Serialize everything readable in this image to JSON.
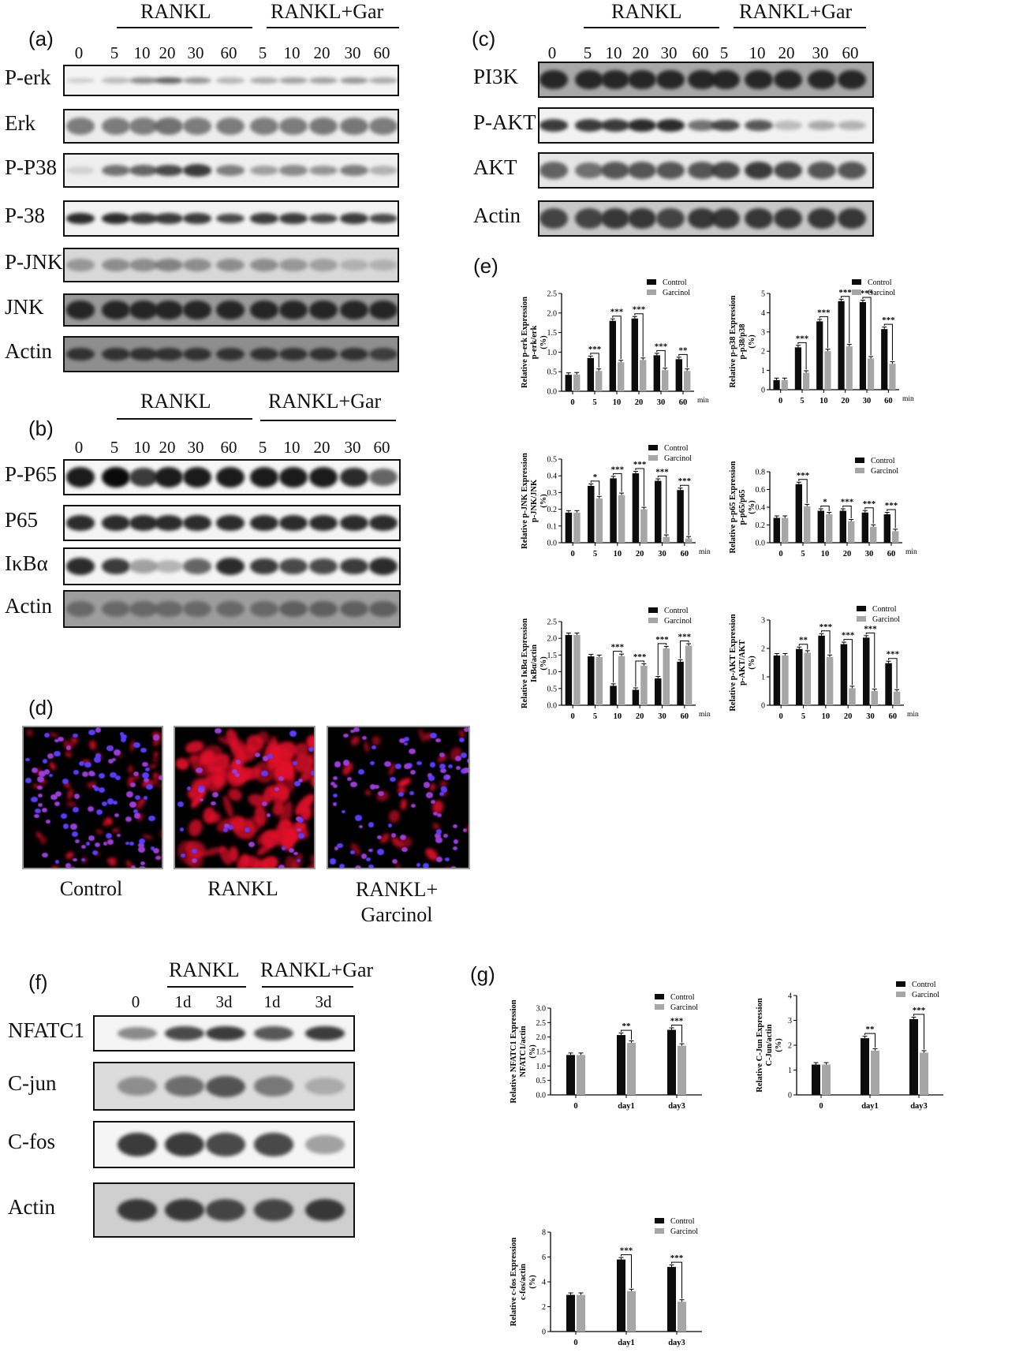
{
  "panels": {
    "a": {
      "letter": "(a)",
      "group1": "RANKL",
      "group2": "RANKL+Gar",
      "times": [
        "0",
        "5",
        "10",
        "20",
        "30",
        "60",
        "5",
        "10",
        "20",
        "30",
        "60"
      ],
      "rows": [
        "P-erk",
        "Erk",
        "P-P38",
        "P-38",
        "P-JNK",
        "JNK",
        "Actin"
      ]
    },
    "b": {
      "letter": "(b)",
      "group1": "RANKL",
      "group2": "RANKL+Gar",
      "times": [
        "0",
        "5",
        "10",
        "20",
        "30",
        "60",
        "5",
        "10",
        "20",
        "30",
        "60"
      ],
      "rows": [
        "P-P65",
        "P65",
        "IκBα",
        "Actin"
      ]
    },
    "c": {
      "letter": "(c)",
      "group1": "RANKL",
      "group2": "RANKL+Gar",
      "times": [
        "0",
        "5",
        "10",
        "20",
        "30",
        "60",
        "5",
        "10",
        "20",
        "30",
        "60"
      ],
      "rows": [
        "PI3K",
        "P-AKT",
        "AKT",
        "Actin"
      ]
    },
    "d": {
      "letter": "(d)",
      "labels": [
        "Control",
        "RANKL",
        "RANKL+\nGarcinol"
      ]
    },
    "e": {
      "letter": "(e)"
    },
    "f": {
      "letter": "(f)",
      "group1": "RANKL",
      "group2": "RANKL+Gar",
      "times": [
        "0",
        "1d",
        "3d",
        "1d",
        "3d"
      ],
      "rows": [
        "NFATC1",
        "C-jun",
        "C-fos",
        "Actin"
      ]
    },
    "g": {
      "letter": "(g)"
    }
  },
  "legend": {
    "control": "Control",
    "garcinol": "Garcinol"
  },
  "colors": {
    "control": "#0c0c0c",
    "garcinol": "#a6a6a6"
  },
  "chart_data": [
    {
      "id": "e1",
      "type": "bar",
      "categories": [
        "0",
        "5",
        "10",
        "20",
        "30",
        "60"
      ],
      "xunit": "min",
      "ylabel": [
        "Relative p-erk Expression",
        "p-erk/erk",
        "(%)"
      ],
      "ylim": [
        0,
        2.5
      ],
      "yticks": [
        "0.0",
        "0.5",
        "1.0",
        "1.5",
        "2.0",
        "2.5"
      ],
      "series": [
        {
          "name": "Control",
          "values": [
            0.42,
            0.85,
            1.8,
            1.86,
            0.92,
            0.82
          ]
        },
        {
          "name": "Garcinol",
          "values": [
            0.43,
            0.52,
            0.74,
            0.8,
            0.54,
            0.52
          ]
        }
      ],
      "sig": [
        "",
        "***",
        "***",
        "***",
        "***",
        "**"
      ]
    },
    {
      "id": "e2",
      "type": "bar",
      "categories": [
        "0",
        "5",
        "10",
        "20",
        "30",
        "60"
      ],
      "xunit": "min",
      "ylabel": [
        "Relative p-p38 Expression",
        "p-p38/p38",
        "(%)"
      ],
      "ylim": [
        0,
        5
      ],
      "yticks": [
        "0",
        "1",
        "2",
        "3",
        "4",
        "5"
      ],
      "series": [
        {
          "name": "Control",
          "values": [
            0.5,
            2.2,
            3.55,
            4.6,
            4.55,
            3.15
          ]
        },
        {
          "name": "Garcinol",
          "values": [
            0.5,
            0.88,
            2.0,
            2.25,
            1.62,
            1.35
          ]
        }
      ],
      "sig": [
        "",
        "***",
        "***",
        "***",
        "***",
        "***"
      ]
    },
    {
      "id": "e3",
      "type": "bar",
      "categories": [
        "0",
        "5",
        "10",
        "20",
        "30",
        "60"
      ],
      "xunit": "min",
      "ylabel": [
        "Relative p-JNK Expression",
        "p-JNK/JNK",
        "(%)"
      ],
      "ylim": [
        0,
        0.5
      ],
      "yticks": [
        "0.0",
        "0.1",
        "0.2",
        "0.3",
        "0.4",
        "0.5"
      ],
      "series": [
        {
          "name": "Control",
          "values": [
            0.18,
            0.34,
            0.385,
            0.415,
            0.37,
            0.315
          ]
        },
        {
          "name": "Garcinol",
          "values": [
            0.18,
            0.265,
            0.285,
            0.2,
            0.035,
            0.025
          ]
        }
      ],
      "sig": [
        "",
        "*",
        "***",
        "***",
        "***",
        "***"
      ]
    },
    {
      "id": "e4",
      "type": "bar",
      "categories": [
        "0",
        "5",
        "10",
        "20",
        "30",
        "60"
      ],
      "xunit": "min",
      "ylabel": [
        "Relative p-p65 Expression",
        "p-p65/p65",
        "(%)"
      ],
      "ylim": [
        0,
        0.8
      ],
      "yticks": [
        "0.0",
        "0.2",
        "0.4",
        "0.6",
        "0.8"
      ],
      "series": [
        {
          "name": "Control",
          "values": [
            0.28,
            0.66,
            0.36,
            0.36,
            0.34,
            0.32
          ]
        },
        {
          "name": "Garcinol",
          "values": [
            0.28,
            0.41,
            0.32,
            0.24,
            0.18,
            0.13
          ]
        }
      ],
      "sig": [
        "",
        "***",
        "*",
        "***",
        "***",
        "***"
      ]
    },
    {
      "id": "e5",
      "type": "bar",
      "categories": [
        "0",
        "5",
        "10",
        "20",
        "30",
        "60"
      ],
      "xunit": "min",
      "ylabel": [
        "Relative IκBα Expression",
        "IκBα/actin",
        "(%)"
      ],
      "ylim": [
        0,
        2.5
      ],
      "yticks": [
        "0.0",
        "0.5",
        "1.0",
        "1.5",
        "2.0",
        "2.5"
      ],
      "series": [
        {
          "name": "Control",
          "values": [
            2.1,
            1.46,
            0.58,
            0.46,
            0.8,
            1.3
          ]
        },
        {
          "name": "Garcinol",
          "values": [
            2.1,
            1.44,
            1.47,
            1.18,
            1.7,
            1.78
          ]
        }
      ],
      "sig": [
        "",
        "",
        "***",
        "***",
        "***",
        "***"
      ]
    },
    {
      "id": "e6",
      "type": "bar",
      "categories": [
        "0",
        "5",
        "10",
        "20",
        "30",
        "60"
      ],
      "xunit": "min",
      "ylabel": [
        "Relative p-AKT Expression",
        "p-AKT/AKT",
        "(%)"
      ],
      "ylim": [
        0,
        3
      ],
      "yticks": [
        "0",
        "1",
        "2",
        "3"
      ],
      "series": [
        {
          "name": "Control",
          "values": [
            1.75,
            1.98,
            2.45,
            2.15,
            2.38,
            1.48
          ]
        },
        {
          "name": "Garcinol",
          "values": [
            1.75,
            1.85,
            1.7,
            0.6,
            0.5,
            0.48
          ]
        }
      ],
      "sig": [
        "",
        "**",
        "***",
        "***",
        "***",
        "***"
      ]
    },
    {
      "id": "g1",
      "type": "bar",
      "categories": [
        "0",
        "day1",
        "day3"
      ],
      "xunit": "",
      "ylabel": [
        "Relative NFATC1 Expression",
        "NFATC1/actin",
        "(%)"
      ],
      "ylim": [
        0,
        3.0
      ],
      "yticks": [
        "0.0",
        "0.5",
        "1.0",
        "1.5",
        "2.0",
        "2.5",
        "3.0"
      ],
      "series": [
        {
          "name": "Control",
          "values": [
            1.38,
            2.07,
            2.25
          ]
        },
        {
          "name": "Garcinol",
          "values": [
            1.38,
            1.8,
            1.7
          ]
        }
      ],
      "sig": [
        "",
        "**",
        "***"
      ]
    },
    {
      "id": "g2",
      "type": "bar",
      "categories": [
        "0",
        "day1",
        "day3"
      ],
      "xunit": "",
      "ylabel": [
        "Relative C-Jun Expression",
        "C-Jun/actin",
        "(%)"
      ],
      "ylim": [
        0,
        4
      ],
      "yticks": [
        "0",
        "1",
        "2",
        "3",
        "4"
      ],
      "series": [
        {
          "name": "Control",
          "values": [
            1.22,
            2.28,
            3.05
          ]
        },
        {
          "name": "Garcinol",
          "values": [
            1.22,
            1.78,
            1.7
          ]
        }
      ],
      "sig": [
        "",
        "**",
        "***"
      ]
    },
    {
      "id": "g3",
      "type": "bar",
      "categories": [
        "0",
        "day1",
        "day3"
      ],
      "xunit": "",
      "ylabel": [
        "Relative c-fos Expression",
        "c-fos/actin",
        "(%)"
      ],
      "ylim": [
        0,
        8
      ],
      "yticks": [
        "0",
        "2",
        "4",
        "6",
        "8"
      ],
      "series": [
        {
          "name": "Control",
          "values": [
            2.95,
            5.8,
            5.2
          ]
        },
        {
          "name": "Garcinol",
          "values": [
            2.95,
            3.25,
            2.4
          ]
        }
      ],
      "sig": [
        "",
        "***",
        "***"
      ]
    }
  ]
}
